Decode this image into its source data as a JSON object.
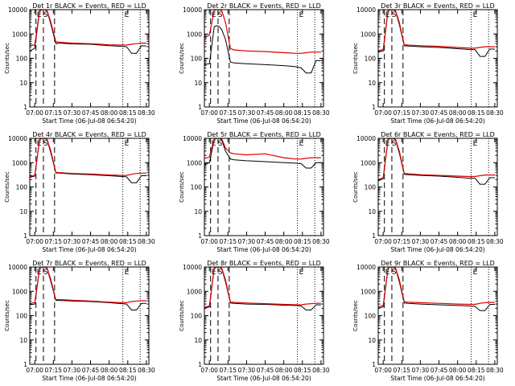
{
  "page": {
    "background": "#ffffff"
  },
  "colors": {
    "events": "#000000",
    "lld": "#e00000",
    "axes": "#000000"
  },
  "shared": {
    "xlabel": "Start Time (06-Jul-08 06:54:20)",
    "ylabel": "Counts/sec",
    "title_suffix": "BLACK = Events, RED = LLD",
    "x_tick_labels": [
      "07:00",
      "07:15",
      "07:30",
      "07:45",
      "08:00",
      "08:15",
      "08:30"
    ],
    "y_tick_labels": [
      "1",
      "10",
      "100",
      "1000",
      "10000"
    ],
    "marker_labels": [
      "E",
      "S",
      "E"
    ]
  },
  "chart_data": [
    {
      "type": "line",
      "title": "Det 1r BLACK = Events, RED = LLD",
      "xlim": [
        "06:56",
        "08:32"
      ],
      "ylim": [
        1,
        10000
      ],
      "yscale": "log",
      "dashed_markers": [
        "07:01",
        "07:07",
        "07:16"
      ],
      "dotted_markers": [
        "08:11",
        "08:25"
      ],
      "series": [
        {
          "x": [
            "06:56",
            "07:00",
            "07:04",
            "07:06",
            "07:08",
            "07:10",
            "07:13",
            "07:17",
            "07:20",
            "07:30",
            "07:45",
            "08:00",
            "08:10",
            "08:14",
            "08:18",
            "08:22",
            "08:26",
            "08:30"
          ],
          "values": [
            200,
            260,
            9000,
            10500,
            10500,
            8500,
            2500,
            400,
            420,
            390,
            380,
            330,
            310,
            300,
            160,
            160,
            330,
            320
          ]
        },
        {
          "x": [
            "06:56",
            "07:00",
            "07:04",
            "07:06",
            "07:08",
            "07:10",
            "07:13",
            "07:17",
            "07:20",
            "07:30",
            "07:45",
            "08:00",
            "08:10",
            "08:14",
            "08:18",
            "08:22",
            "08:26",
            "08:30"
          ],
          "values": [
            340,
            350,
            9500,
            11000,
            11000,
            9000,
            3000,
            480,
            460,
            420,
            400,
            360,
            350,
            350,
            380,
            400,
            420,
            420
          ]
        }
      ]
    },
    {
      "type": "line",
      "title": "Det 2r BLACK = Events, RED = LLD",
      "xlim": [
        "06:56",
        "08:32"
      ],
      "ylim": [
        1,
        10000
      ],
      "yscale": "log",
      "dashed_markers": [
        "07:01",
        "07:07",
        "07:16"
      ],
      "dotted_markers": [
        "08:11",
        "08:25"
      ],
      "series": [
        {
          "x": [
            "06:56",
            "07:00",
            "07:04",
            "07:06",
            "07:08",
            "07:10",
            "07:13",
            "07:17",
            "07:20",
            "07:30",
            "07:45",
            "08:00",
            "08:10",
            "08:14",
            "08:18",
            "08:22",
            "08:26",
            "08:30"
          ],
          "values": [
            55,
            60,
            2000,
            2200,
            2000,
            1500,
            600,
            70,
            65,
            60,
            55,
            50,
            45,
            40,
            25,
            25,
            80,
            80
          ]
        },
        {
          "x": [
            "06:56",
            "07:00",
            "07:04",
            "07:06",
            "07:08",
            "07:10",
            "07:13",
            "07:17",
            "07:20",
            "07:30",
            "07:45",
            "08:00",
            "08:10",
            "08:14",
            "08:18",
            "08:22",
            "08:26",
            "08:30"
          ],
          "values": [
            700,
            900,
            9500,
            11000,
            11000,
            9000,
            3000,
            250,
            220,
            200,
            190,
            170,
            160,
            160,
            170,
            180,
            180,
            180
          ]
        }
      ]
    },
    {
      "type": "line",
      "title": "Det 3r BLACK = Events, RED = LLD",
      "xlim": [
        "06:56",
        "08:32"
      ],
      "ylim": [
        1,
        10000
      ],
      "yscale": "log",
      "dashed_markers": [
        "07:01",
        "07:07",
        "07:16"
      ],
      "dotted_markers": [
        "08:11",
        "08:25"
      ],
      "series": [
        {
          "x": [
            "06:56",
            "07:00",
            "07:04",
            "07:06",
            "07:08",
            "07:10",
            "07:13",
            "07:17",
            "07:20",
            "07:30",
            "07:45",
            "08:00",
            "08:10",
            "08:14",
            "08:18",
            "08:22",
            "08:26",
            "08:30"
          ],
          "values": [
            180,
            200,
            9000,
            10500,
            10500,
            8500,
            2500,
            330,
            320,
            300,
            280,
            250,
            230,
            230,
            120,
            120,
            240,
            240
          ]
        },
        {
          "x": [
            "06:56",
            "07:00",
            "07:04",
            "07:06",
            "07:08",
            "07:10",
            "07:13",
            "07:17",
            "07:20",
            "07:30",
            "07:45",
            "08:00",
            "08:10",
            "08:14",
            "08:18",
            "08:22",
            "08:26",
            "08:30"
          ],
          "values": [
            200,
            230,
            9500,
            11000,
            11000,
            9000,
            3000,
            360,
            350,
            330,
            310,
            280,
            260,
            260,
            280,
            300,
            300,
            300
          ]
        }
      ]
    },
    {
      "type": "line",
      "title": "Det 4r BLACK = Events, RED = LLD",
      "xlim": [
        "06:56",
        "08:32"
      ],
      "ylim": [
        1,
        10000
      ],
      "yscale": "log",
      "dashed_markers": [
        "07:01",
        "07:07",
        "07:16"
      ],
      "dotted_markers": [
        "08:11",
        "08:25"
      ],
      "series": [
        {
          "x": [
            "06:56",
            "07:00",
            "07:04",
            "07:06",
            "07:08",
            "07:10",
            "07:13",
            "07:17",
            "07:20",
            "07:30",
            "07:45",
            "08:00",
            "08:10",
            "08:14",
            "08:18",
            "08:22",
            "08:26",
            "08:30"
          ],
          "values": [
            250,
            280,
            9000,
            10500,
            10500,
            8500,
            2500,
            380,
            370,
            340,
            320,
            290,
            270,
            260,
            150,
            150,
            290,
            290
          ]
        },
        {
          "x": [
            "06:56",
            "07:00",
            "07:04",
            "07:06",
            "07:08",
            "07:10",
            "07:13",
            "07:17",
            "07:20",
            "07:30",
            "07:45",
            "08:00",
            "08:10",
            "08:14",
            "08:18",
            "08:22",
            "08:26",
            "08:30"
          ],
          "values": [
            270,
            300,
            9500,
            11000,
            11000,
            9000,
            3000,
            400,
            390,
            360,
            340,
            310,
            300,
            300,
            330,
            360,
            370,
            370
          ]
        }
      ]
    },
    {
      "type": "line",
      "title": "Det 5r BLACK = Events, RED = LLD",
      "xlim": [
        "06:56",
        "08:32"
      ],
      "ylim": [
        1,
        10000
      ],
      "yscale": "log",
      "dashed_markers": [
        "07:01",
        "07:07",
        "07:16"
      ],
      "dotted_markers": [
        "08:11",
        "08:25"
      ],
      "series": [
        {
          "x": [
            "06:56",
            "07:00",
            "07:04",
            "07:06",
            "07:08",
            "07:10",
            "07:13",
            "07:17",
            "07:20",
            "07:30",
            "07:45",
            "08:00",
            "08:10",
            "08:14",
            "08:18",
            "08:22",
            "08:26",
            "08:30"
          ],
          "values": [
            800,
            1000,
            9000,
            10500,
            10500,
            8500,
            3000,
            1400,
            1300,
            1200,
            1100,
            1000,
            950,
            900,
            600,
            600,
            1000,
            1000
          ]
        },
        {
          "x": [
            "06:56",
            "07:00",
            "07:04",
            "07:06",
            "07:08",
            "07:10",
            "07:13",
            "07:17",
            "07:20",
            "07:30",
            "07:45",
            "08:00",
            "08:10",
            "08:14",
            "08:18",
            "08:22",
            "08:26",
            "08:30"
          ],
          "values": [
            1500,
            1700,
            9500,
            11000,
            11000,
            9500,
            4000,
            2500,
            2300,
            2100,
            2300,
            1600,
            1400,
            1400,
            1500,
            1600,
            1600,
            1600
          ]
        }
      ]
    },
    {
      "type": "line",
      "title": "Det 6r BLACK = Events, RED = LLD",
      "xlim": [
        "06:56",
        "08:32"
      ],
      "ylim": [
        1,
        10000
      ],
      "yscale": "log",
      "dashed_markers": [
        "07:01",
        "07:07",
        "07:16"
      ],
      "dotted_markers": [
        "08:11",
        "08:25"
      ],
      "series": [
        {
          "x": [
            "06:56",
            "07:00",
            "07:04",
            "07:06",
            "07:08",
            "07:10",
            "07:13",
            "07:17",
            "07:20",
            "07:30",
            "07:45",
            "08:00",
            "08:10",
            "08:14",
            "08:18",
            "08:22",
            "08:26",
            "08:30"
          ],
          "values": [
            180,
            220,
            9000,
            10500,
            10500,
            8500,
            2500,
            330,
            320,
            300,
            280,
            250,
            230,
            230,
            130,
            130,
            240,
            240
          ]
        },
        {
          "x": [
            "06:56",
            "07:00",
            "07:04",
            "07:06",
            "07:08",
            "07:10",
            "07:13",
            "07:17",
            "07:20",
            "07:30",
            "07:45",
            "08:00",
            "08:10",
            "08:14",
            "08:18",
            "08:22",
            "08:26",
            "08:30"
          ],
          "values": [
            200,
            240,
            9500,
            11000,
            11000,
            9000,
            3000,
            360,
            350,
            320,
            300,
            280,
            270,
            270,
            290,
            310,
            310,
            310
          ]
        }
      ]
    },
    {
      "type": "line",
      "title": "Det 7r BLACK = Events, RED = LLD",
      "xlim": [
        "06:56",
        "08:32"
      ],
      "ylim": [
        1,
        10000
      ],
      "yscale": "log",
      "dashed_markers": [
        "07:01",
        "07:07",
        "07:16"
      ],
      "dotted_markers": [
        "08:11",
        "08:25"
      ],
      "series": [
        {
          "x": [
            "06:56",
            "07:00",
            "07:04",
            "07:06",
            "07:08",
            "07:10",
            "07:13",
            "07:17",
            "07:20",
            "07:30",
            "07:45",
            "08:00",
            "08:10",
            "08:14",
            "08:18",
            "08:22",
            "08:26",
            "08:30"
          ],
          "values": [
            280,
            300,
            9000,
            10500,
            10500,
            8500,
            2500,
            420,
            420,
            400,
            380,
            340,
            310,
            300,
            170,
            170,
            320,
            320
          ]
        },
        {
          "x": [
            "06:56",
            "07:00",
            "07:04",
            "07:06",
            "07:08",
            "07:10",
            "07:13",
            "07:17",
            "07:20",
            "07:30",
            "07:45",
            "08:00",
            "08:10",
            "08:14",
            "08:18",
            "08:22",
            "08:26",
            "08:30"
          ],
          "values": [
            320,
            340,
            9500,
            11000,
            11000,
            9000,
            3000,
            450,
            460,
            430,
            400,
            360,
            340,
            340,
            380,
            400,
            410,
            410
          ]
        }
      ]
    },
    {
      "type": "line",
      "title": "Det 8r BLACK = Events, RED = LLD",
      "xlim": [
        "06:56",
        "08:32"
      ],
      "ylim": [
        1,
        10000
      ],
      "yscale": "log",
      "dashed_markers": [
        "07:01",
        "07:07",
        "07:16"
      ],
      "dotted_markers": [
        "08:11",
        "08:25"
      ],
      "series": [
        {
          "x": [
            "06:56",
            "07:00",
            "07:04",
            "07:06",
            "07:08",
            "07:10",
            "07:13",
            "07:17",
            "07:20",
            "07:30",
            "07:45",
            "08:00",
            "08:10",
            "08:14",
            "08:18",
            "08:22",
            "08:26",
            "08:30"
          ],
          "values": [
            200,
            230,
            9000,
            10500,
            10500,
            8500,
            2500,
            330,
            320,
            300,
            290,
            270,
            260,
            250,
            170,
            170,
            280,
            280
          ]
        },
        {
          "x": [
            "06:56",
            "07:00",
            "07:04",
            "07:06",
            "07:08",
            "07:10",
            "07:13",
            "07:17",
            "07:20",
            "07:30",
            "07:45",
            "08:00",
            "08:10",
            "08:14",
            "08:18",
            "08:22",
            "08:26",
            "08:30"
          ],
          "values": [
            220,
            250,
            9500,
            11000,
            11000,
            9000,
            3000,
            360,
            350,
            330,
            310,
            290,
            280,
            280,
            300,
            310,
            320,
            320
          ]
        }
      ]
    },
    {
      "type": "line",
      "title": "Det 9r BLACK = Events, RED = LLD",
      "xlim": [
        "06:56",
        "08:32"
      ],
      "ylim": [
        1,
        10000
      ],
      "yscale": "log",
      "dashed_markers": [
        "07:01",
        "07:07",
        "07:16"
      ],
      "dotted_markers": [
        "08:11",
        "08:25"
      ],
      "series": [
        {
          "x": [
            "06:56",
            "07:00",
            "07:04",
            "07:06",
            "07:08",
            "07:10",
            "07:13",
            "07:17",
            "07:20",
            "07:30",
            "07:45",
            "08:00",
            "08:10",
            "08:14",
            "08:18",
            "08:22",
            "08:26",
            "08:30"
          ],
          "values": [
            200,
            230,
            9000,
            10500,
            10500,
            8500,
            2500,
            330,
            320,
            300,
            280,
            260,
            250,
            240,
            160,
            160,
            290,
            290
          ]
        },
        {
          "x": [
            "06:56",
            "07:00",
            "07:04",
            "07:06",
            "07:08",
            "07:10",
            "07:13",
            "07:17",
            "07:20",
            "07:30",
            "07:45",
            "08:00",
            "08:10",
            "08:14",
            "08:18",
            "08:22",
            "08:26",
            "08:30"
          ],
          "values": [
            230,
            260,
            9500,
            11000,
            11000,
            9000,
            3000,
            370,
            360,
            340,
            320,
            300,
            290,
            290,
            320,
            340,
            350,
            350
          ]
        }
      ]
    }
  ]
}
